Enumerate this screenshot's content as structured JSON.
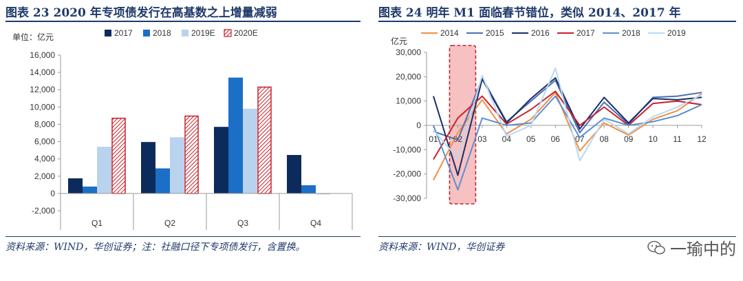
{
  "left": {
    "title": "图表 23   2020 年专项债发行在高基数之上增量减弱",
    "source": "资料来源：WIND，华创证券；注：社融口径下专项债发行，含置换。",
    "colors": {
      "2017": "#0c2a5c",
      "2018": "#1b6fc6",
      "2019E": "#b9d3ee",
      "2020E": "#c8202a"
    }
  },
  "right": {
    "title": "图表 24   明年 M1 面临春节错位，类似 2014、2017 年",
    "source": "资料来源：WIND，华创证券",
    "watermark": "一瑜中的",
    "colors": {
      "2014": "#f28e44",
      "2015": "#4a6fb5",
      "2016": "#1a2d66",
      "2017": "#c8202a",
      "2018": "#5b8fd0",
      "2019": "#b9d8f2"
    }
  },
  "chart_data": [
    {
      "type": "bar",
      "unit_label": "单位：亿元",
      "categories": [
        "Q1",
        "Q2",
        "Q3",
        "Q4"
      ],
      "series": [
        {
          "name": "2017",
          "values": [
            1750,
            5950,
            7700,
            4450
          ]
        },
        {
          "name": "2018",
          "values": [
            800,
            2900,
            13400,
            950
          ]
        },
        {
          "name": "2019E",
          "values": [
            5400,
            6500,
            9800,
            -100
          ]
        },
        {
          "name": "2020E",
          "values": [
            8700,
            8950,
            12300,
            null
          ],
          "pattern": "hatched"
        }
      ],
      "ylim": [
        -2000,
        16000
      ],
      "yticks": [
        -2000,
        0,
        2000,
        4000,
        6000,
        8000,
        10000,
        12000,
        14000,
        16000
      ],
      "ytick_labels": [
        "-2,000",
        "0",
        "2,000",
        "4,000",
        "6,000",
        "8,000",
        "10,000",
        "12,000",
        "14,000",
        "16,000"
      ],
      "legend_position": "top",
      "grid": false
    },
    {
      "type": "line",
      "unit_label": "亿元",
      "x": [
        "01",
        "02",
        "03",
        "04",
        "05",
        "06",
        "07",
        "08",
        "09",
        "10",
        "11",
        "12"
      ],
      "series": [
        {
          "name": "2014",
          "values": [
            -22500,
            -3000,
            10500,
            -3500,
            2500,
            13500,
            -10500,
            1000,
            -4000,
            2500,
            6000,
            13000
          ]
        },
        {
          "name": "2015",
          "values": [
            -2500,
            -6000,
            19500,
            1500,
            10000,
            18500,
            -3000,
            9500,
            500,
            11500,
            12000,
            13500
          ]
        },
        {
          "name": "2016",
          "values": [
            12000,
            -20500,
            19000,
            1000,
            11000,
            19500,
            -1500,
            11500,
            1000,
            11000,
            10500,
            11500
          ]
        },
        {
          "name": "2017",
          "values": [
            -14000,
            3000,
            12000,
            500,
            6500,
            14000,
            0,
            7500,
            0,
            9000,
            10000,
            8500
          ]
        },
        {
          "name": "2018",
          "values": [
            0,
            -26500,
            3000,
            0,
            1000,
            12000,
            -5000,
            3000,
            0,
            1500,
            4000,
            8500
          ]
        },
        {
          "name": "2019",
          "values": [
            -2000,
            -13500,
            20500,
            -4500,
            0,
            23500,
            -14500,
            2500,
            -3500,
            3500,
            7500,
            12500
          ]
        }
      ],
      "ylim": [
        -30000,
        30000
      ],
      "yticks": [
        -30000,
        -20000,
        -10000,
        0,
        10000,
        20000,
        30000
      ],
      "ytick_labels": [
        "-30,000",
        "-20,000",
        "-10,000",
        "0",
        "10,000",
        "20,000",
        "30,000"
      ],
      "highlight": {
        "category": "02",
        "style": "dashed-red-box"
      },
      "legend_position": "top",
      "grid": false
    }
  ]
}
